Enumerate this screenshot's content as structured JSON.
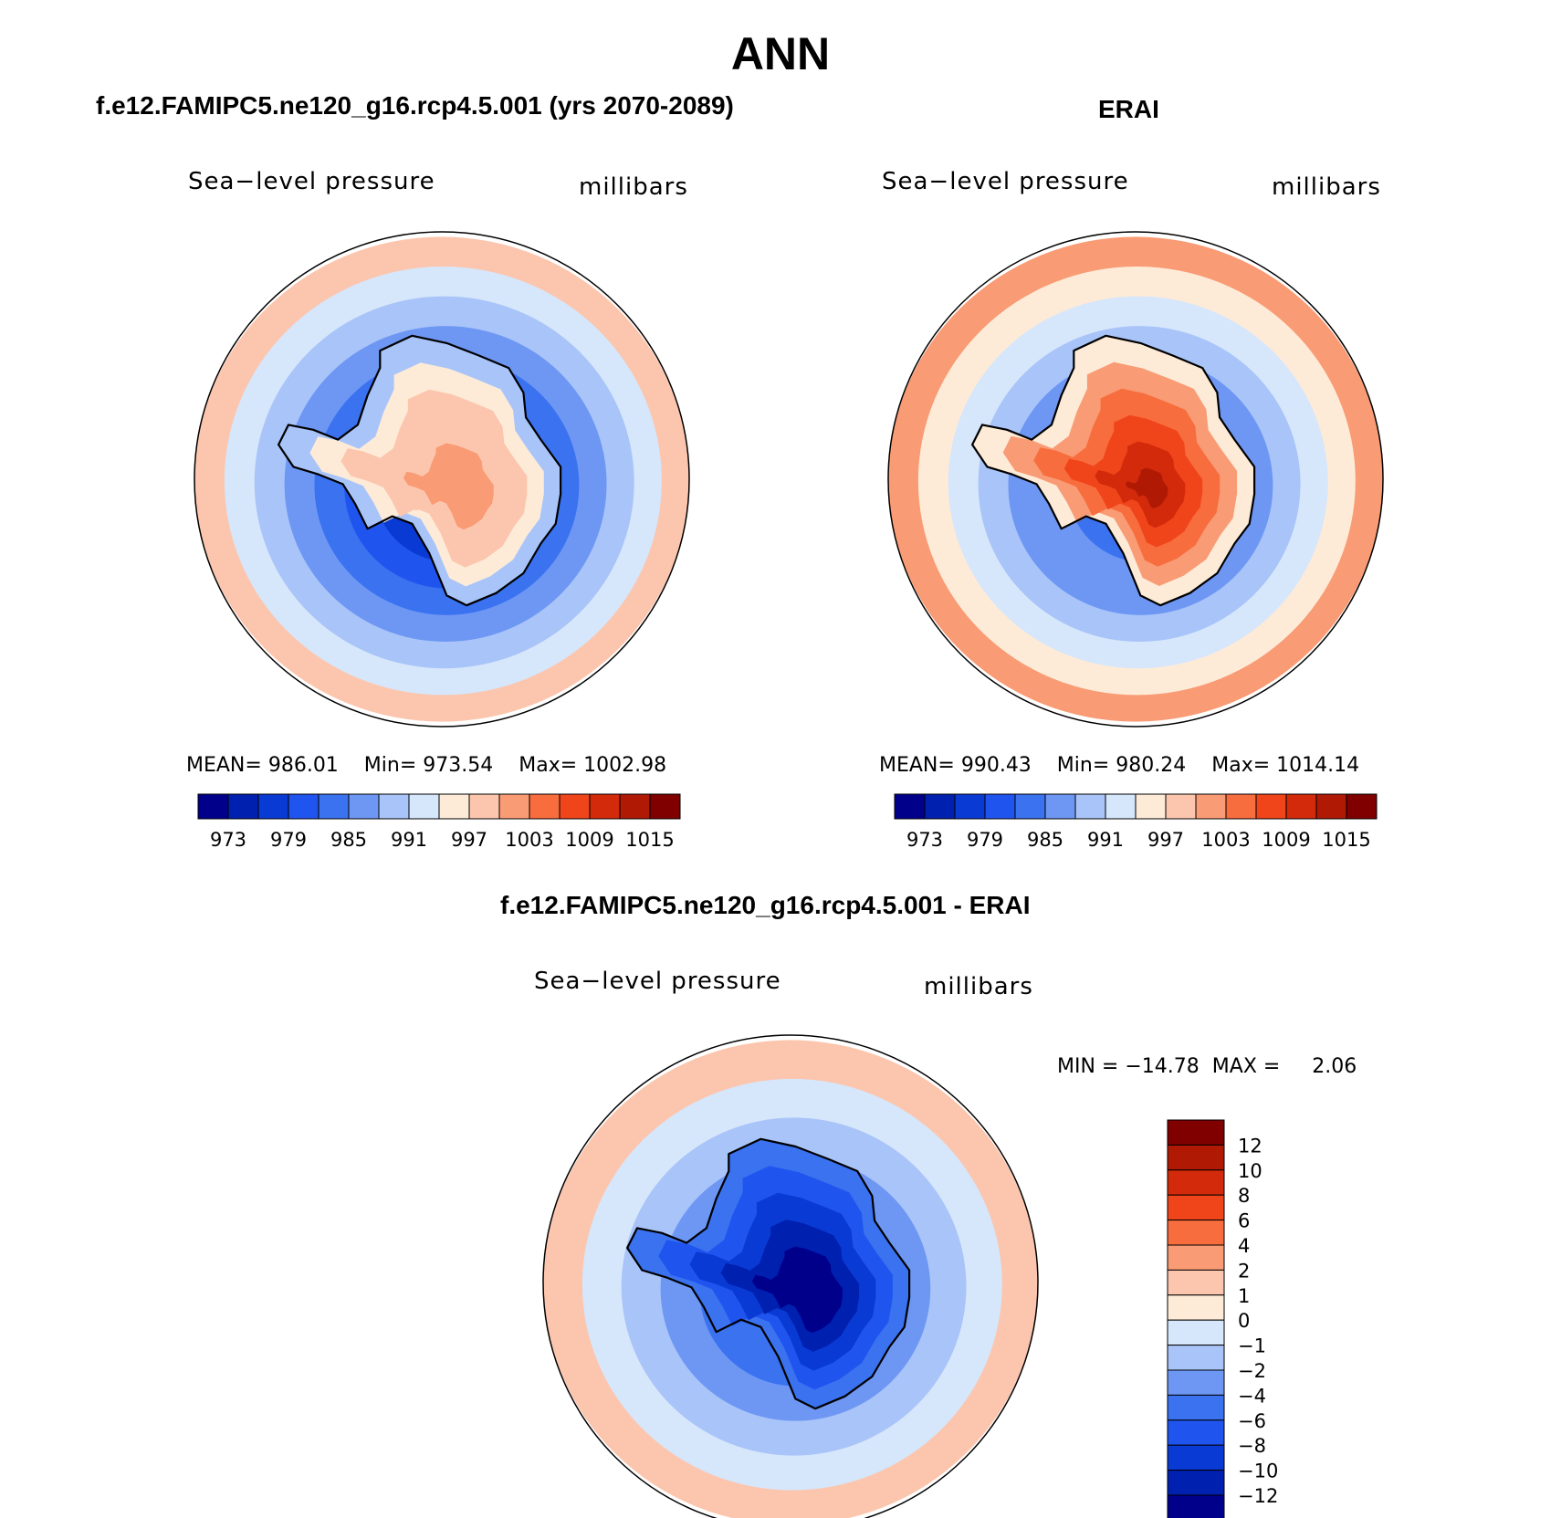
{
  "header": {
    "title": "ANN"
  },
  "colors": {
    "ramp": [
      "#00008b",
      "#0020b0",
      "#0a3ad4",
      "#1f55ee",
      "#3a72f0",
      "#6e97f4",
      "#a8c4f8",
      "#d6e6fb",
      "#fdebd8",
      "#fcc6ae",
      "#f99b74",
      "#f76d3e",
      "#f0451a",
      "#d22a0a",
      "#b01a05",
      "#800000"
    ]
  },
  "chart_data": [
    {
      "type": "heatmap",
      "name": "model-panel",
      "title": "f.e12.FAMIPC5.ne120_g16.rcp4.5.001 (yrs 2070-2089)",
      "left_label": "Sea−level pressure",
      "right_label": "millibars",
      "stats": {
        "mean_label": "MEAN=",
        "mean": "986.01",
        "min_label": "Min=",
        "min": "973.54",
        "max_label": "Max=",
        "max": "1002.98"
      },
      "colorbar_ticks": [
        "973",
        "979",
        "985",
        "991",
        "997",
        "1003",
        "1009",
        "1015"
      ],
      "colorbar_levels": [
        973,
        976,
        979,
        982,
        985,
        988,
        991,
        994,
        997,
        1000,
        1003,
        1006,
        1009,
        1012,
        1015
      ],
      "field": {
        "ring_values": [
          998,
          993,
          990,
          987,
          984,
          981,
          978,
          976
        ],
        "continent_values": [
          990,
          994,
          997,
          999,
          1001
        ]
      }
    },
    {
      "type": "heatmap",
      "name": "erai-panel",
      "title": "ERAI",
      "left_label": "Sea−level pressure",
      "right_label": "millibars",
      "stats": {
        "mean_label": "MEAN=",
        "mean": "990.43",
        "min_label": "Min=",
        "min": "980.24",
        "max_label": "Max=",
        "max": "1014.14"
      },
      "colorbar_ticks": [
        "973",
        "979",
        "985",
        "991",
        "997",
        "1003",
        "1009",
        "1015"
      ],
      "colorbar_levels": [
        973,
        976,
        979,
        982,
        985,
        988,
        991,
        994,
        997,
        1000,
        1003,
        1006,
        1009,
        1012,
        1015
      ],
      "field": {
        "ring_values": [
          1000,
          995,
          992,
          989,
          987,
          985,
          983,
          982
        ],
        "continent_values": [
          995,
          1001,
          1005,
          1008,
          1011,
          1014
        ]
      }
    },
    {
      "type": "heatmap",
      "name": "difference-panel",
      "title": "f.e12.FAMIPC5.ne120_g16.rcp4.5.001 - ERAI",
      "left_label": "Sea−level pressure",
      "right_label": "millibars",
      "stats": {
        "min_label": "MIN =",
        "min": "−14.78",
        "max_label": "MAX =",
        "max": "2.06"
      },
      "colorbar_ticks": [
        "12",
        "10",
        "8",
        "6",
        "4",
        "2",
        "1",
        "0",
        "−1",
        "−2",
        "−4",
        "−6",
        "−8",
        "−10",
        "−12"
      ],
      "colorbar_levels": [
        -12,
        -10,
        -8,
        -6,
        -4,
        -2,
        -1,
        0,
        1,
        2,
        4,
        6,
        8,
        10,
        12
      ],
      "field": {
        "ring_values": [
          1,
          -0.5,
          -1.5,
          -3,
          -5,
          -6
        ],
        "continent_values": [
          -5,
          -7,
          -9,
          -11,
          -13
        ]
      }
    }
  ]
}
